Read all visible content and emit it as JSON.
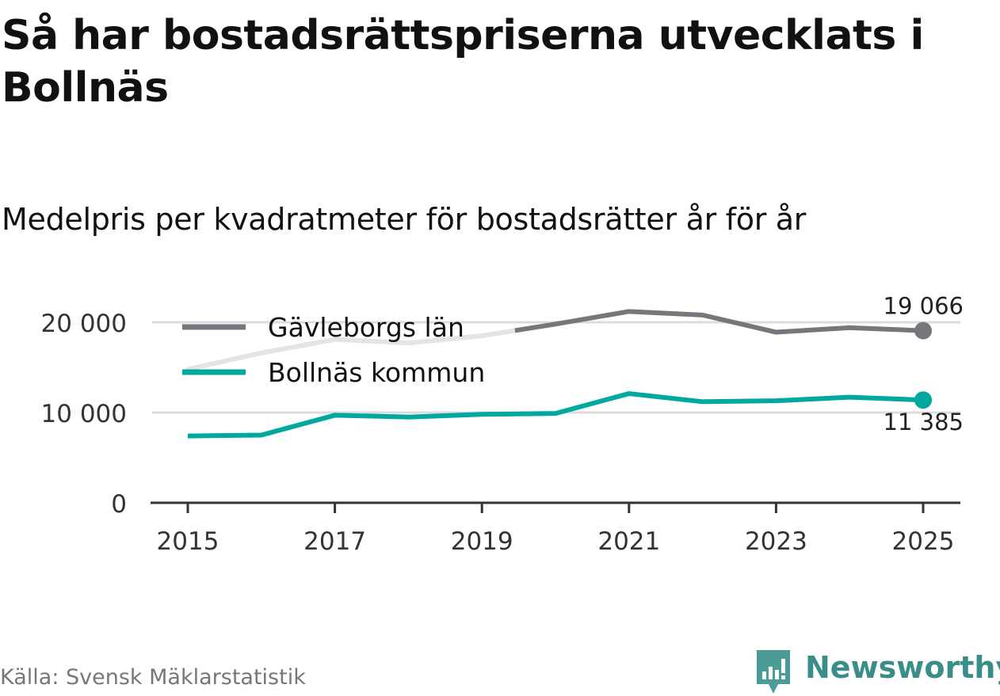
{
  "title": "Så har bostadsrättspriserna utvecklats i Bollnäs",
  "subtitle": "Medelpris per kvadratmeter för bostadsrätter år för år",
  "source": "Källa: Svensk Mäklarstatistik",
  "brand": "Newsworthy",
  "colors": {
    "county": "#77767c",
    "municipality": "#00a89d",
    "grid": "#dcdcdc",
    "axis": "#333333",
    "legend_ghost": "#e4e4e4",
    "brand": "#3a8e8a"
  },
  "chart_data": {
    "type": "line",
    "x": [
      2015,
      2016,
      2017,
      2018,
      2019,
      2020,
      2021,
      2022,
      2023,
      2024,
      2025
    ],
    "x_ticks": [
      "2015",
      "2017",
      "2019",
      "2021",
      "2023",
      "2025"
    ],
    "y_ticks": [
      {
        "value": 0,
        "label": "0"
      },
      {
        "value": 10000,
        "label": "10 000"
      },
      {
        "value": 20000,
        "label": "20 000"
      }
    ],
    "ylim": [
      0,
      24000
    ],
    "series": [
      {
        "name": "Gävleborgs län",
        "values": [
          14800,
          16600,
          18100,
          17700,
          18500,
          19800,
          21200,
          20800,
          18900,
          19400,
          19066
        ],
        "end_label": "19 066"
      },
      {
        "name": "Bollnäs kommun",
        "values": [
          7400,
          7500,
          9700,
          9500,
          9800,
          9900,
          12100,
          11200,
          11300,
          11700,
          11385
        ],
        "end_label": "11 385"
      }
    ],
    "legend_position": "top-left"
  }
}
